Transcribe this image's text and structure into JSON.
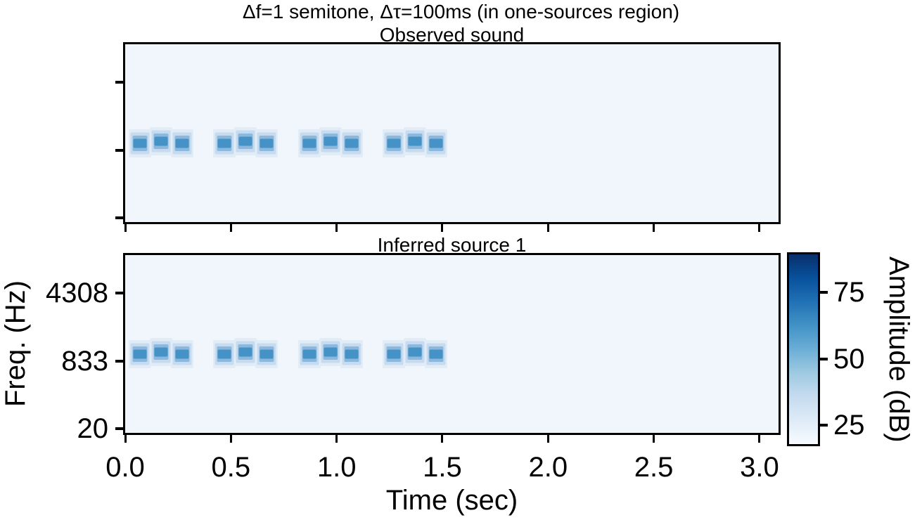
{
  "figure": {
    "background": "#ffffff",
    "text_color": "#000000",
    "plot_background": "#f1f6fc"
  },
  "chart_data": {
    "type": "heatmap",
    "subtype": "spectrogram-pair",
    "suptitle": "Δf=1 semitone, Δτ=100ms (in one-sources region)",
    "panels": [
      {
        "title": "Observed sound",
        "y_tick_labels_shown": false
      },
      {
        "title": "Inferred source 1",
        "y_tick_labels_shown": true
      }
    ],
    "xlabel": "Time (sec)",
    "ylabel": "Freq. (Hz)",
    "xlim_sec": [
      0,
      3.09
    ],
    "x_ticks_sec": [
      0.0,
      0.5,
      1.0,
      1.5,
      2.0,
      2.5,
      3.0
    ],
    "x_tick_labels": [
      "0.0",
      "0.5",
      "1.0",
      "1.5",
      "2.0",
      "2.5",
      "3.0"
    ],
    "y_scale": "erb",
    "ylim_hz": [
      0,
      10000
    ],
    "y_ticks_hz": [
      4308,
      833,
      20
    ],
    "y_tick_labels": [
      "4308",
      "833",
      "20"
    ],
    "grid": false,
    "colormap": "Blues",
    "background_db": 20,
    "colorbar": {
      "label": "Amplitude (dB)",
      "ticks_db": [
        75,
        50,
        25
      ],
      "tick_labels": [
        "75",
        "50",
        "25"
      ],
      "range_db": [
        17.9,
        89.4
      ]
    },
    "tones": {
      "pattern": "ABA galloping triplets, identical in both panels",
      "a_freq_hz": 1000,
      "b_freq_hz": 1059,
      "duration_sec": 0.05,
      "peak_db": 63,
      "center_times_sec": [
        0.07,
        0.17,
        0.27,
        0.47,
        0.57,
        0.67,
        0.87,
        0.97,
        1.07,
        1.27,
        1.37,
        1.47
      ],
      "types": [
        "A",
        "B",
        "A",
        "A",
        "B",
        "A",
        "A",
        "B",
        "A",
        "A",
        "B",
        "A"
      ]
    }
  }
}
